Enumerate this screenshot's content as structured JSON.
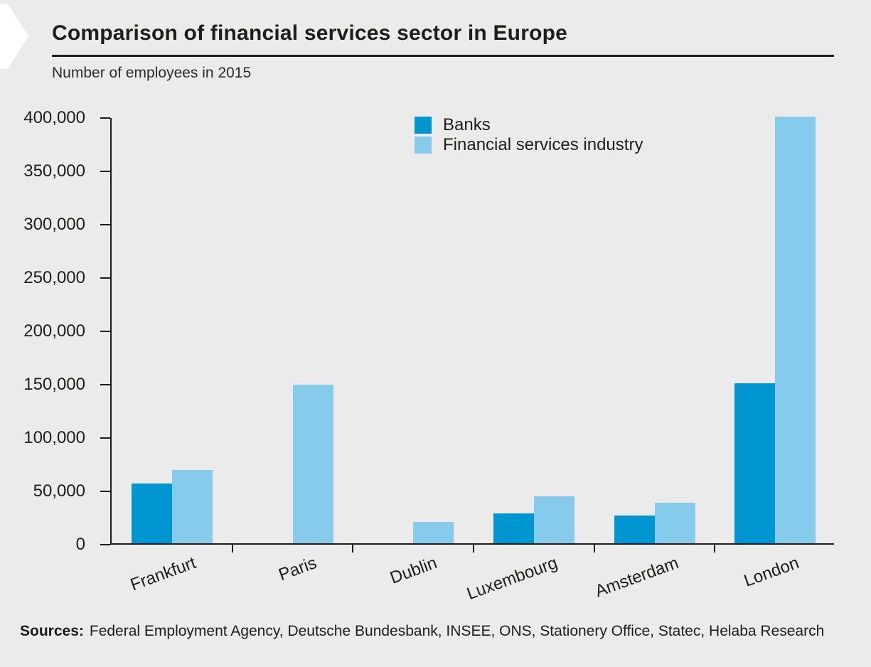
{
  "header": {
    "title": "Comparison of financial services sector in Europe",
    "subtitle": "Number of employees in 2015"
  },
  "chart_data": {
    "type": "bar",
    "title": "Comparison of financial services sector in Europe",
    "subtitle": "Number of employees in 2015",
    "categories": [
      "Frankfurt",
      "Paris",
      "Dublin",
      "Luxembourg",
      "Amsterdam",
      "London"
    ],
    "series": [
      {
        "name": "Banks",
        "color": "#0096d1",
        "values": [
          56000,
          null,
          null,
          28000,
          26000,
          150000
        ]
      },
      {
        "name": "Financial services industry",
        "color": "#87cbec",
        "values": [
          69000,
          149000,
          20000,
          44000,
          38000,
          400000
        ]
      }
    ],
    "xlabel": "",
    "ylabel": "",
    "ylim": [
      0,
      400000
    ],
    "y_ticks": [
      0,
      50000,
      100000,
      150000,
      200000,
      250000,
      300000,
      350000,
      400000
    ],
    "y_tick_labels": [
      "0",
      "50,000",
      "100,000",
      "150,000",
      "200,000",
      "250,000",
      "300,000",
      "350,000",
      "400,000"
    ],
    "grid": false,
    "legend_position": "top-center",
    "x_labels_rotation_deg": -20
  },
  "footer": {
    "sources_label": "Sources:",
    "sources_text": "Federal Employment Agency, Deutsche Bundesbank, INSEE, ONS, Stationery Office, Statec, Helaba Research"
  },
  "colors": {
    "background": "#ebebeb",
    "banks": "#0096d1",
    "financial_services": "#87cbec",
    "text": "#1d1d1b",
    "axis": "#1d1d1b",
    "chevron": "#ffffff"
  }
}
